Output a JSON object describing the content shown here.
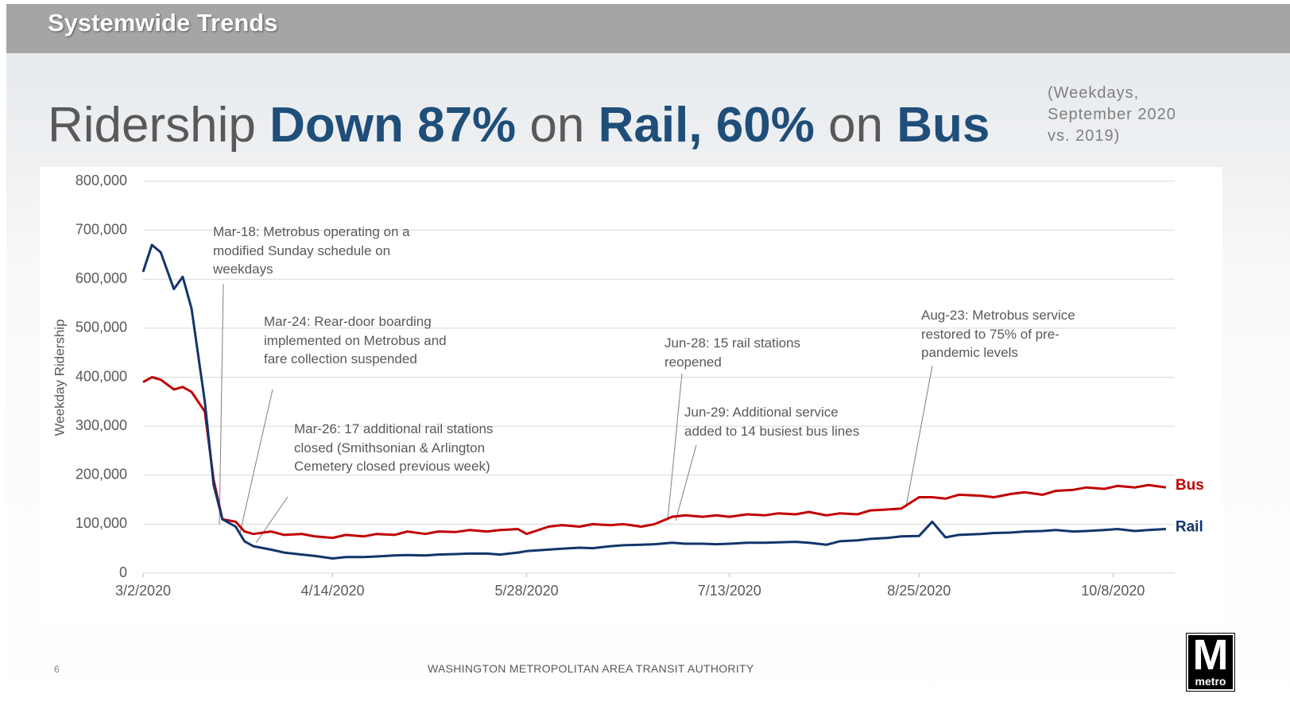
{
  "header": {
    "title": "Systemwide Trends"
  },
  "headline": {
    "parts": [
      "Ridership ",
      "Down 87%",
      " on ",
      "Rail, 60%",
      " on ",
      "Bus"
    ],
    "note": "(Weekdays, September 2020 vs. 2019)"
  },
  "footer": {
    "organization": "WASHINGTON METROPOLITAN AREA TRANSIT AUTHORITY",
    "page": "6",
    "logo": {
      "letter": "M",
      "word": "metro"
    }
  },
  "chart_data": {
    "type": "line",
    "ylabel": "Weekday Ridership",
    "x": [
      "3/2/2020",
      "3/4/2020",
      "3/6/2020",
      "3/9/2020",
      "3/11/2020",
      "3/13/2020",
      "3/16/2020",
      "3/18/2020",
      "3/20/2020",
      "3/23/2020",
      "3/25/2020",
      "3/27/2020",
      "3/31/2020",
      "4/3/2020",
      "4/7/2020",
      "4/10/2020",
      "4/14/2020",
      "4/17/2020",
      "4/21/2020",
      "4/24/2020",
      "4/28/2020",
      "5/1/2020",
      "5/5/2020",
      "5/8/2020",
      "5/12/2020",
      "5/15/2020",
      "5/19/2020",
      "5/22/2020",
      "5/26/2020",
      "5/28/2020",
      "6/2/2020",
      "6/5/2020",
      "6/9/2020",
      "6/12/2020",
      "6/16/2020",
      "6/19/2020",
      "6/23/2020",
      "6/26/2020",
      "6/30/2020",
      "7/3/2020",
      "7/7/2020",
      "7/10/2020",
      "7/13/2020",
      "7/17/2020",
      "7/21/2020",
      "7/24/2020",
      "7/28/2020",
      "7/31/2020",
      "8/4/2020",
      "8/7/2020",
      "8/11/2020",
      "8/14/2020",
      "8/18/2020",
      "8/21/2020",
      "8/25/2020",
      "8/28/2020",
      "8/31/2020",
      "9/3/2020",
      "9/8/2020",
      "9/11/2020",
      "9/15/2020",
      "9/18/2020",
      "9/22/2020",
      "9/25/2020",
      "9/29/2020",
      "10/2/2020",
      "10/6/2020",
      "10/9/2020",
      "10/13/2020",
      "10/16/2020",
      "10/20/2020"
    ],
    "series": [
      {
        "name": "Bus",
        "color": "#c00000",
        "values": [
          390000,
          400000,
          395000,
          375000,
          380000,
          370000,
          330000,
          190000,
          110000,
          105000,
          85000,
          80000,
          85000,
          78000,
          80000,
          75000,
          72000,
          78000,
          75000,
          80000,
          78000,
          85000,
          80000,
          85000,
          84000,
          88000,
          85000,
          88000,
          90000,
          80000,
          95000,
          98000,
          95000,
          100000,
          98000,
          100000,
          95000,
          100000,
          115000,
          118000,
          115000,
          118000,
          115000,
          120000,
          118000,
          122000,
          120000,
          125000,
          118000,
          122000,
          120000,
          128000,
          130000,
          132000,
          155000,
          155000,
          152000,
          160000,
          158000,
          155000,
          162000,
          165000,
          160000,
          168000,
          170000,
          175000,
          172000,
          178000,
          175000,
          180000,
          175000
        ]
      },
      {
        "name": "Rail",
        "color": "#12356b",
        "values": [
          615000,
          670000,
          655000,
          580000,
          605000,
          540000,
          350000,
          180000,
          110000,
          95000,
          65000,
          55000,
          48000,
          42000,
          38000,
          35000,
          30000,
          33000,
          33000,
          34000,
          36000,
          37000,
          36000,
          38000,
          39000,
          40000,
          40000,
          38000,
          42000,
          45000,
          48000,
          50000,
          52000,
          51000,
          55000,
          57000,
          58000,
          59000,
          62000,
          60000,
          60000,
          59000,
          60000,
          62000,
          62000,
          63000,
          64000,
          62000,
          58000,
          65000,
          67000,
          70000,
          72000,
          75000,
          76000,
          105000,
          73000,
          78000,
          80000,
          82000,
          83000,
          85000,
          86000,
          88000,
          85000,
          86000,
          88000,
          90000,
          86000,
          88000,
          90000
        ]
      }
    ],
    "xlim": [
      "3/2/2020",
      "10/22/2020"
    ],
    "xticks": [
      "3/2/2020",
      "4/14/2020",
      "5/28/2020",
      "7/13/2020",
      "8/25/2020",
      "10/8/2020"
    ],
    "ylim": [
      0,
      800000
    ],
    "yticks": [
      0,
      {
        "value": 100000,
        "label": "100,000"
      },
      {
        "value": 200000,
        "label": "200,000"
      },
      {
        "value": 300000,
        "label": "300,000"
      },
      {
        "value": 400000,
        "label": "400,000"
      },
      {
        "value": 500000,
        "label": "500,000"
      },
      {
        "value": 600000,
        "label": "600,000"
      },
      {
        "value": 700000,
        "label": "700,000"
      },
      {
        "value": 800000,
        "label": "800,000"
      }
    ],
    "grid": true,
    "annotations": [
      "Mar-18: Metrobus operating on a modified Sunday schedule on weekdays",
      "Mar-24: Rear-door boarding implemented on Metrobus and fare collection suspended",
      "Mar-26: 17 additional rail stations closed (Smithsonian & Arlington Cemetery closed previous week)",
      "Jun-28: 15 rail stations reopened",
      "Jun-29: Additional service added to 14 busiest bus lines",
      "Aug-23: Metrobus service restored to 75% of pre-pandemic levels"
    ]
  }
}
